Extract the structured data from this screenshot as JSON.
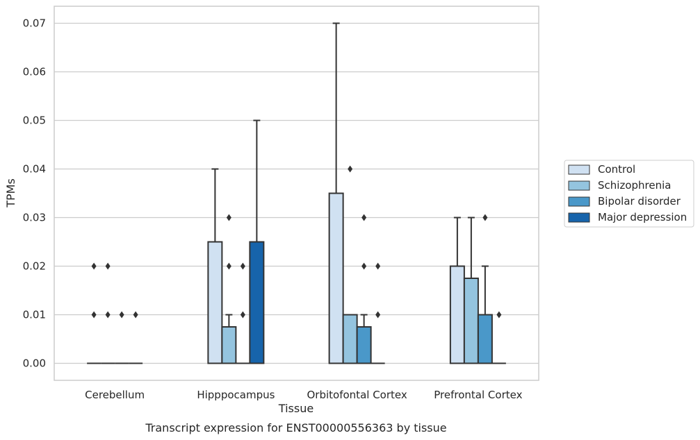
{
  "chart_data": {
    "type": "box",
    "title": "",
    "caption": "Transcript expression for ENST00000556363 by tissue",
    "xlabel": "Tissue",
    "ylabel": "TPMs",
    "ylim": [
      -0.0035,
      0.0735
    ],
    "yticks": [
      "0.00",
      "0.01",
      "0.02",
      "0.03",
      "0.04",
      "0.05",
      "0.06",
      "0.07"
    ],
    "grid": true,
    "legend_position": "right",
    "categories": [
      "Cerebellum",
      "Hipppocampus",
      "Orbitofontal Cortex",
      "Prefrontal Cortex"
    ],
    "series": [
      {
        "name": "Control",
        "color": "#d0e1f2",
        "boxes": [
          {
            "q1": 0,
            "median": 0,
            "q3": 0,
            "whisker_low": 0,
            "whisker_high": 0,
            "outliers": [
              0.01,
              0.02
            ]
          },
          {
            "q1": 0,
            "median": 0,
            "q3": 0.025,
            "whisker_low": 0,
            "whisker_high": 0.04,
            "outliers": []
          },
          {
            "q1": 0,
            "median": 0,
            "q3": 0.035,
            "whisker_low": 0,
            "whisker_high": 0.07,
            "outliers": []
          },
          {
            "q1": 0,
            "median": 0,
            "q3": 0.02,
            "whisker_low": 0,
            "whisker_high": 0.03,
            "outliers": []
          }
        ]
      },
      {
        "name": "Schizophrenia",
        "color": "#94c4df",
        "boxes": [
          {
            "q1": 0,
            "median": 0,
            "q3": 0,
            "whisker_low": 0,
            "whisker_high": 0,
            "outliers": [
              0.01,
              0.02
            ]
          },
          {
            "q1": 0,
            "median": 0,
            "q3": 0.0075,
            "whisker_low": 0,
            "whisker_high": 0.01,
            "outliers": [
              0.02,
              0.03
            ]
          },
          {
            "q1": 0,
            "median": 0,
            "q3": 0.01,
            "whisker_low": 0,
            "whisker_high": 0.01,
            "outliers": [
              0.04
            ]
          },
          {
            "q1": 0,
            "median": 0,
            "q3": 0.0175,
            "whisker_low": 0,
            "whisker_high": 0.03,
            "outliers": []
          }
        ]
      },
      {
        "name": "Bipolar disorder",
        "color": "#4a98c9",
        "boxes": [
          {
            "q1": 0,
            "median": 0,
            "q3": 0,
            "whisker_low": 0,
            "whisker_high": 0,
            "outliers": [
              0.01
            ]
          },
          {
            "q1": 0,
            "median": 0,
            "q3": 0,
            "whisker_low": 0,
            "whisker_high": 0,
            "outliers": [
              0.01,
              0.02
            ]
          },
          {
            "q1": 0,
            "median": 0,
            "q3": 0.0075,
            "whisker_low": 0,
            "whisker_high": 0.01,
            "outliers": [
              0.02,
              0.03
            ]
          },
          {
            "q1": 0,
            "median": 0,
            "q3": 0.01,
            "whisker_low": 0,
            "whisker_high": 0.02,
            "outliers": [
              0.03
            ]
          }
        ]
      },
      {
        "name": "Major depression",
        "color": "#1764ab",
        "boxes": [
          {
            "q1": 0,
            "median": 0,
            "q3": 0,
            "whisker_low": 0,
            "whisker_high": 0,
            "outliers": [
              0.01
            ]
          },
          {
            "q1": 0,
            "median": 0,
            "q3": 0.025,
            "whisker_low": 0,
            "whisker_high": 0.05,
            "outliers": []
          },
          {
            "q1": 0,
            "median": 0,
            "q3": 0,
            "whisker_low": 0,
            "whisker_high": 0,
            "outliers": [
              0.01,
              0.02
            ]
          },
          {
            "q1": 0,
            "median": 0,
            "q3": 0,
            "whisker_low": 0,
            "whisker_high": 0,
            "outliers": [
              0.01
            ]
          }
        ]
      }
    ]
  }
}
